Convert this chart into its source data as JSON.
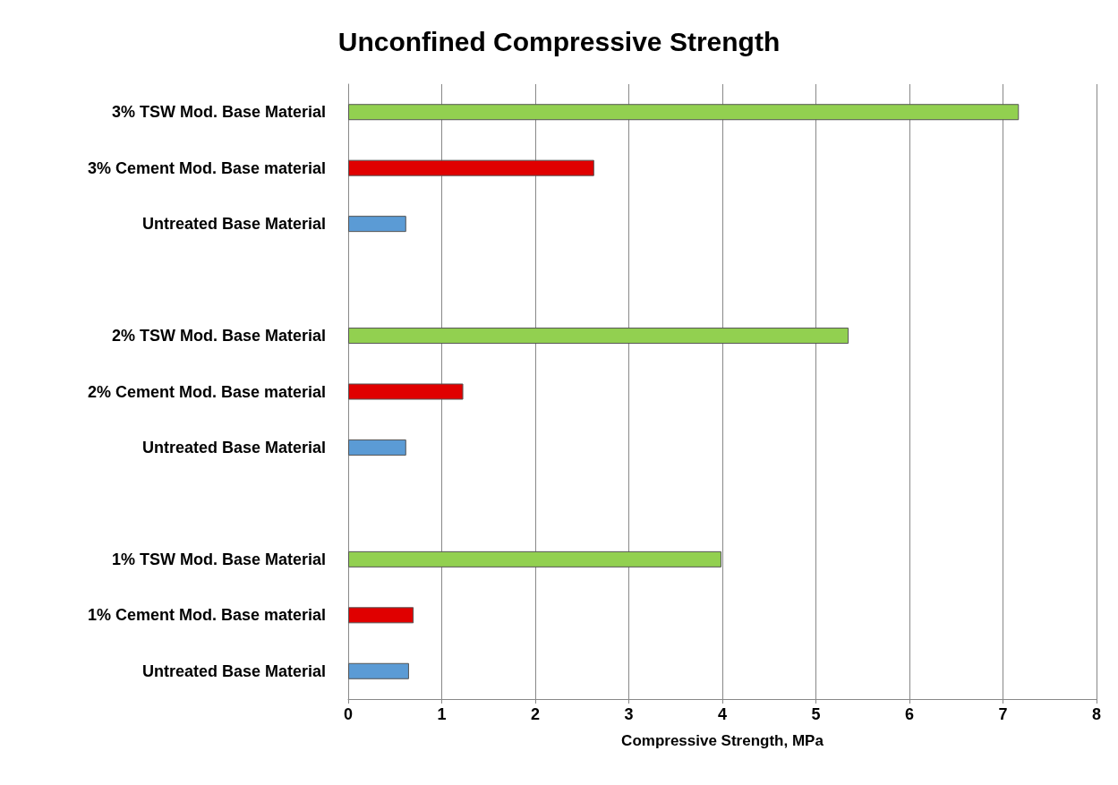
{
  "chart_data": {
    "type": "bar",
    "orientation": "horizontal",
    "title": "Unconfined Compressive Strength",
    "xlabel": "Compressive Strength, MPa",
    "categories": [
      "3% TSW Mod. Base Material",
      "3% Cement Mod. Base material",
      "Untreated Base Material",
      null,
      "2% TSW Mod. Base Material",
      "2% Cement Mod. Base material",
      "Untreated Base Material",
      null,
      "1% TSW Mod. Base Material",
      "1% Cement Mod. Base material",
      "Untreated Base Material"
    ],
    "values": [
      7.17,
      2.63,
      0.62,
      null,
      5.35,
      1.23,
      0.62,
      null,
      3.99,
      0.7,
      0.65
    ],
    "colors": [
      "#92d050",
      "#e00000",
      "#5b9bd5",
      null,
      "#92d050",
      "#e00000",
      "#5b9bd5",
      null,
      "#92d050",
      "#e00000",
      "#5b9bd5"
    ],
    "xlim": [
      0,
      8
    ],
    "xticks": [
      0,
      1,
      2,
      3,
      4,
      5,
      6,
      7,
      8
    ],
    "grid": "x"
  }
}
